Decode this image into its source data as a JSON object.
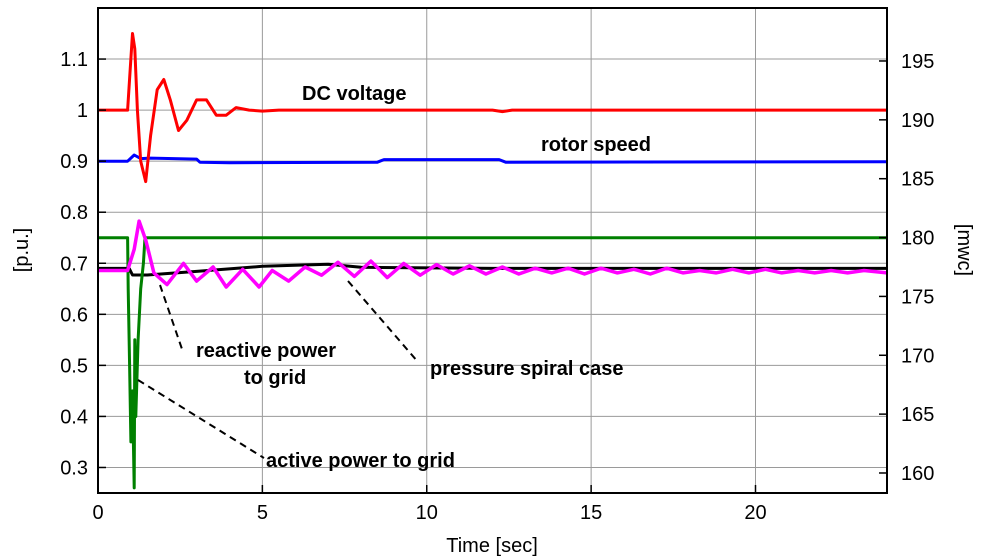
{
  "chart_data": {
    "type": "line",
    "xlabel": "Time   [sec]",
    "ylabel_left": "[p.u.]",
    "ylabel_right": "[mwc]",
    "xlim": [
      0,
      24
    ],
    "ylim_left": [
      0.25,
      1.2
    ],
    "ylim_right": [
      158.3,
      199.5
    ],
    "grid": true,
    "x_ticks": [
      "0",
      "5",
      "10",
      "15",
      "20"
    ],
    "y_ticks_left": [
      "0.3",
      "0.4",
      "0.5",
      "0.6",
      "0.7",
      "0.8",
      "0.9",
      "1",
      "1.1"
    ],
    "y_ticks_right": [
      "160",
      "165",
      "170",
      "175",
      "180",
      "185",
      "190",
      "195"
    ],
    "colors": {
      "dc_voltage": "#ff0000",
      "rotor_speed": "#0000ff",
      "active_power": "#008000",
      "reactive_power": "#000000",
      "pressure": "#ff00ff"
    },
    "series": [
      {
        "key": "dc_voltage",
        "axis": "left",
        "label": "DC voltage",
        "x": [
          0,
          0.9,
          0.98,
          1.05,
          1.12,
          1.2,
          1.3,
          1.45,
          1.6,
          1.8,
          2.0,
          2.2,
          2.45,
          2.7,
          3.0,
          3.3,
          3.6,
          3.9,
          4.2,
          4.6,
          5.0,
          5.5,
          6,
          12,
          12.3,
          12.6,
          24
        ],
        "y": [
          1.0,
          1.0,
          1.08,
          1.15,
          1.12,
          1.0,
          0.9,
          0.86,
          0.95,
          1.04,
          1.06,
          1.02,
          0.96,
          0.98,
          1.02,
          1.02,
          0.99,
          0.99,
          1.005,
          1.0,
          0.998,
          1.0,
          1.0,
          1.0,
          0.997,
          1.0,
          1.0
        ]
      },
      {
        "key": "rotor_speed",
        "axis": "left",
        "label": "rotor speed",
        "x": [
          0,
          0.9,
          1.1,
          1.3,
          1.6,
          3.0,
          3.1,
          4.0,
          8.5,
          8.7,
          12.2,
          12.4,
          24
        ],
        "y": [
          0.9,
          0.9,
          0.912,
          0.905,
          0.906,
          0.904,
          0.898,
          0.897,
          0.898,
          0.903,
          0.903,
          0.898,
          0.899
        ]
      },
      {
        "key": "active_power",
        "axis": "left",
        "label": "active power to grid",
        "x": [
          0,
          0.9,
          0.92,
          0.96,
          1.0,
          1.05,
          1.1,
          1.12,
          1.15,
          1.22,
          1.3,
          1.38,
          1.43,
          1.45,
          24
        ],
        "y": [
          0.75,
          0.75,
          0.65,
          0.5,
          0.35,
          0.45,
          0.26,
          0.55,
          0.4,
          0.55,
          0.65,
          0.7,
          0.75,
          0.75,
          0.75
        ]
      },
      {
        "key": "reactive_power",
        "axis": "left",
        "label": "reactive power to grid",
        "x": [
          0,
          0.95,
          1.05,
          1.5,
          3,
          5,
          7,
          8,
          12,
          24
        ],
        "y": [
          0.69,
          0.69,
          0.677,
          0.677,
          0.684,
          0.694,
          0.698,
          0.692,
          0.69,
          0.69
        ]
      },
      {
        "key": "pressure",
        "axis": "right",
        "label": "pressure spiral case",
        "x": [
          0,
          0.9,
          1.1,
          1.25,
          1.45,
          1.7,
          2.1,
          2.6,
          3.0,
          3.5,
          3.9,
          4.4,
          4.9,
          5.3,
          5.8,
          6.3,
          6.8,
          7.3,
          7.8,
          8.3,
          8.8,
          9.3,
          9.8,
          10.3,
          10.8,
          11.3,
          11.8,
          12.3,
          12.8,
          13.3,
          13.8,
          14.3,
          14.8,
          15.3,
          15.8,
          16.3,
          16.8,
          17.3,
          17.8,
          18.3,
          18.8,
          19.3,
          19.8,
          20.3,
          20.8,
          21.3,
          21.8,
          22.3,
          22.8,
          23.3,
          24
        ],
        "y": [
          177.2,
          177.2,
          179.0,
          181.4,
          179.8,
          177.0,
          176.0,
          177.8,
          176.3,
          177.5,
          175.8,
          177.3,
          175.8,
          177.2,
          176.3,
          177.5,
          176.8,
          177.9,
          176.7,
          178.0,
          176.6,
          177.8,
          176.8,
          177.7,
          176.9,
          177.6,
          176.9,
          177.5,
          176.9,
          177.4,
          177.0,
          177.4,
          176.9,
          177.4,
          177.0,
          177.3,
          176.9,
          177.4,
          177.0,
          177.2,
          177.0,
          177.3,
          177.0,
          177.3,
          177.0,
          177.2,
          177.0,
          177.2,
          177.0,
          177.2,
          177.0
        ]
      }
    ],
    "annotations": [
      {
        "key": "dc_voltage",
        "text": "DC voltage"
      },
      {
        "key": "rotor_speed",
        "text": "rotor speed"
      },
      {
        "key": "reactive_power",
        "lines": [
          "reactive power",
          "to grid"
        ]
      },
      {
        "key": "pressure",
        "text": "pressure spiral case"
      },
      {
        "key": "active_power",
        "text": "active power to grid"
      }
    ]
  }
}
